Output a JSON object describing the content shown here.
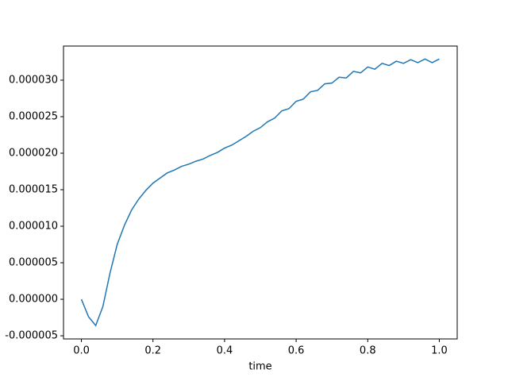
{
  "chart_data": {
    "type": "line",
    "xlabel": "time",
    "x": [
      0,
      0.02,
      0.04,
      0.06,
      0.08,
      0.1,
      0.12,
      0.14,
      0.16,
      0.18,
      0.2,
      0.22,
      0.24,
      0.26,
      0.28,
      0.3,
      0.32,
      0.34,
      0.36,
      0.38,
      0.4,
      0.42,
      0.44,
      0.46,
      0.48,
      0.5,
      0.52,
      0.54,
      0.56,
      0.58,
      0.6,
      0.62,
      0.64,
      0.66,
      0.68,
      0.7,
      0.72,
      0.74,
      0.76,
      0.78,
      0.8,
      0.82,
      0.84,
      0.86,
      0.88,
      0.9,
      0.92,
      0.94,
      0.96,
      0.98,
      1.0
    ],
    "series": [
      {
        "color": "#1f77b4",
        "values": [
          0,
          -2.4e-06,
          -3.6e-06,
          -1e-06,
          3.6e-06,
          7.5e-06,
          1.01e-05,
          1.22e-05,
          1.37e-05,
          1.49e-05,
          1.59e-05,
          1.66e-05,
          1.73e-05,
          1.77e-05,
          1.82e-05,
          1.85e-05,
          1.89e-05,
          1.92e-05,
          1.97e-05,
          2.01e-05,
          2.07e-05,
          2.11e-05,
          2.17e-05,
          2.23e-05,
          2.3e-05,
          2.35e-05,
          2.43e-05,
          2.48e-05,
          2.58e-05,
          2.61e-05,
          2.71e-05,
          2.74e-05,
          2.84e-05,
          2.86e-05,
          2.95e-05,
          2.96e-05,
          3.04e-05,
          3.03e-05,
          3.12e-05,
          3.1e-05,
          3.18e-05,
          3.15e-05,
          3.23e-05,
          3.2e-05,
          3.26e-05,
          3.23e-05,
          3.28e-05,
          3.24e-05,
          3.29e-05,
          3.24e-05,
          3.29e-05
        ]
      }
    ],
    "xlim": [
      -0.05,
      1.05
    ],
    "xticks": [
      {
        "value": 0,
        "label": "0.0"
      },
      0.2,
      0.4,
      0.6,
      0.8,
      {
        "value": 1,
        "label": "1.0"
      }
    ],
    "ylim": [
      -5.43e-06,
      3.467e-05
    ],
    "yticks": [
      {
        "value": -5e-06,
        "label": "-0.000005"
      },
      {
        "value": 0,
        "label": "0.000000"
      },
      {
        "value": 5e-06,
        "label": "0.000005"
      },
      {
        "value": 1e-05,
        "label": "0.000010"
      },
      {
        "value": 1.5e-05,
        "label": "0.000015"
      },
      {
        "value": 2e-05,
        "label": "0.000020"
      },
      {
        "value": 2.5e-05,
        "label": "0.000025"
      },
      {
        "value": 3e-05,
        "label": "0.000030"
      }
    ],
    "grid": false
  }
}
